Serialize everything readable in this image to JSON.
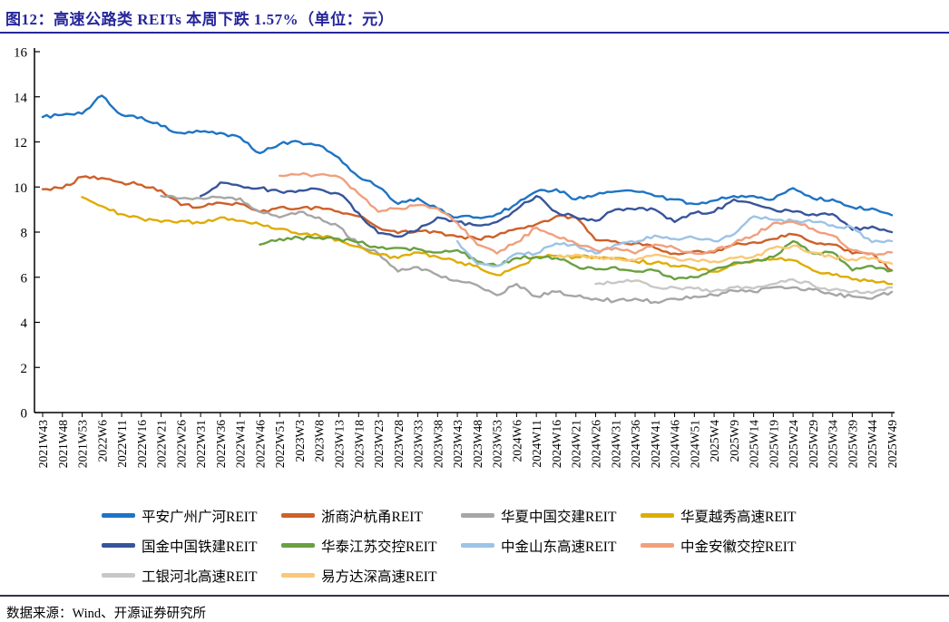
{
  "title": "图12：高速公路类 REITs 本周下跌 1.57%（单位：元）",
  "footer": {
    "source_text": "数据来源：Wind、开源证券研究所"
  },
  "chart_data": {
    "type": "line",
    "title": "高速公路类 REITs 本周下跌 1.57%",
    "unit": "元",
    "ylim": [
      0,
      16
    ],
    "yticks": [
      0,
      2,
      4,
      6,
      8,
      10,
      12,
      14,
      16
    ],
    "grid": false,
    "legend_position": "bottom",
    "x_labels": [
      "2021W43",
      "2021W48",
      "2021W53",
      "2022W6",
      "2022W11",
      "2022W16",
      "2022W21",
      "2022W26",
      "2022W31",
      "2022W36",
      "2022W41",
      "2022W46",
      "2022W51",
      "2023W3",
      "2023W8",
      "2023W13",
      "2023W18",
      "2023W23",
      "2023W28",
      "2023W33",
      "2023W38",
      "2023W43",
      "2023W48",
      "2023W53",
      "2024W6",
      "2024W11",
      "2024W16",
      "2024W21",
      "2024W26",
      "2024W31",
      "2024W36",
      "2024W41",
      "2024W46",
      "2024W51",
      "2025W4",
      "2025W9",
      "2025W14",
      "2025W19",
      "2025W24",
      "2025W29",
      "2025W34",
      "2025W39",
      "2025W44",
      "2025W49"
    ],
    "series": [
      {
        "name": "平安广州广河REIT",
        "color": "#1F74C4",
        "values": [
          13.1,
          13.2,
          13.25,
          14.05,
          13.2,
          13.1,
          12.7,
          12.4,
          12.45,
          12.4,
          12.2,
          11.5,
          11.9,
          12.0,
          11.85,
          11.3,
          10.45,
          10.0,
          9.25,
          9.5,
          9.05,
          8.65,
          8.65,
          8.8,
          9.25,
          9.8,
          9.9,
          9.45,
          9.65,
          9.8,
          9.8,
          9.6,
          9.45,
          9.25,
          9.4,
          9.6,
          9.6,
          9.45,
          9.95,
          9.5,
          9.45,
          9.1,
          9.05,
          8.75
        ]
      },
      {
        "name": "浙商沪杭甬REIT",
        "color": "#CE6029",
        "values": [
          9.9,
          9.95,
          10.45,
          10.4,
          10.2,
          10.1,
          9.85,
          9.2,
          9.1,
          9.3,
          9.25,
          8.9,
          9.1,
          9.05,
          9.1,
          8.9,
          8.7,
          8.2,
          7.95,
          8.05,
          8.0,
          7.8,
          7.7,
          7.85,
          8.15,
          8.35,
          8.7,
          8.65,
          7.65,
          7.6,
          7.5,
          7.3,
          7.05,
          7.15,
          7.1,
          7.45,
          7.55,
          7.7,
          7.9,
          7.55,
          7.45,
          7.05,
          7.05,
          6.3
        ]
      },
      {
        "name": "华夏中国交建REIT",
        "color": "#A6A6A6",
        "values": [
          null,
          null,
          null,
          null,
          null,
          null,
          9.6,
          9.5,
          9.5,
          9.55,
          9.5,
          8.9,
          8.65,
          8.9,
          8.65,
          8.25,
          7.45,
          7.05,
          6.25,
          6.45,
          6.1,
          5.85,
          5.65,
          5.2,
          5.7,
          5.15,
          5.35,
          5.15,
          5.05,
          4.95,
          5.05,
          4.9,
          5.05,
          5.15,
          5.2,
          5.4,
          5.35,
          5.55,
          5.55,
          5.45,
          5.25,
          5.15,
          5.05,
          5.35
        ]
      },
      {
        "name": "华夏越秀高速REIT",
        "color": "#DFAC04",
        "values": [
          null,
          null,
          9.55,
          9.15,
          8.8,
          8.6,
          8.45,
          8.5,
          8.4,
          8.65,
          8.5,
          8.35,
          8.15,
          7.9,
          7.85,
          7.65,
          7.35,
          7.0,
          6.85,
          7.1,
          6.9,
          6.65,
          6.5,
          6.1,
          6.45,
          6.9,
          6.95,
          6.9,
          6.9,
          6.85,
          6.7,
          6.65,
          6.5,
          6.4,
          6.25,
          6.55,
          6.7,
          6.8,
          6.75,
          6.3,
          6.1,
          5.9,
          5.85,
          5.7
        ]
      },
      {
        "name": "国金中国铁建REIT",
        "color": "#37559B",
        "values": [
          null,
          null,
          null,
          null,
          null,
          null,
          null,
          null,
          9.6,
          10.2,
          10.05,
          9.95,
          9.8,
          9.85,
          9.9,
          9.7,
          8.85,
          7.95,
          7.8,
          8.1,
          8.65,
          8.45,
          8.3,
          8.45,
          9.0,
          9.6,
          8.9,
          8.65,
          8.5,
          9.0,
          9.0,
          9.0,
          8.45,
          8.85,
          8.9,
          9.45,
          9.25,
          9.0,
          8.9,
          8.8,
          8.8,
          8.1,
          8.25,
          8.0
        ]
      },
      {
        "name": "华泰江苏交控REIT",
        "color": "#69A041",
        "values": [
          null,
          null,
          null,
          null,
          null,
          null,
          null,
          null,
          null,
          null,
          null,
          7.45,
          7.7,
          7.75,
          7.75,
          7.7,
          7.55,
          7.3,
          7.3,
          7.25,
          7.1,
          7.2,
          6.7,
          6.5,
          6.85,
          6.9,
          6.85,
          6.5,
          6.35,
          6.45,
          6.25,
          6.3,
          5.9,
          6.0,
          6.35,
          6.65,
          6.75,
          6.9,
          7.6,
          7.05,
          7.1,
          6.3,
          6.5,
          6.3
        ]
      },
      {
        "name": "中金山东高速REIT",
        "color": "#9DC3E6",
        "values": [
          null,
          null,
          null,
          null,
          null,
          null,
          null,
          null,
          null,
          null,
          null,
          null,
          null,
          null,
          null,
          null,
          null,
          null,
          null,
          null,
          null,
          7.6,
          6.6,
          6.5,
          7.05,
          7.05,
          7.5,
          7.45,
          7.05,
          7.45,
          7.55,
          7.85,
          7.7,
          7.75,
          7.6,
          7.9,
          8.7,
          8.55,
          8.5,
          8.45,
          8.3,
          8.2,
          7.55,
          7.6
        ]
      },
      {
        "name": "中金安徽交控REIT",
        "color": "#F0A07D",
        "values": [
          null,
          null,
          null,
          null,
          null,
          null,
          null,
          null,
          null,
          null,
          null,
          null,
          10.5,
          10.55,
          10.55,
          10.45,
          9.7,
          8.9,
          9.05,
          9.2,
          9.05,
          8.4,
          7.45,
          7.05,
          7.55,
          8.2,
          7.8,
          7.5,
          7.2,
          7.3,
          7.05,
          7.45,
          7.3,
          7.05,
          7.15,
          7.5,
          7.85,
          8.4,
          8.45,
          8.15,
          7.85,
          7.2,
          7.05,
          7.1
        ]
      },
      {
        "name": "工银河北高速REIT",
        "color": "#C8C8C8",
        "values": [
          null,
          null,
          null,
          null,
          null,
          null,
          null,
          null,
          null,
          null,
          null,
          null,
          null,
          null,
          null,
          null,
          null,
          null,
          null,
          null,
          null,
          null,
          null,
          null,
          null,
          null,
          null,
          null,
          5.7,
          5.75,
          5.85,
          5.55,
          5.55,
          5.5,
          5.4,
          5.55,
          5.5,
          5.7,
          5.9,
          5.65,
          5.45,
          5.35,
          5.3,
          5.55
        ]
      },
      {
        "name": "易方达深高速REIT",
        "color": "#FAC878",
        "values": [
          null,
          null,
          null,
          null,
          null,
          null,
          null,
          null,
          null,
          null,
          null,
          null,
          null,
          null,
          null,
          null,
          null,
          null,
          null,
          null,
          null,
          null,
          null,
          null,
          null,
          null,
          6.9,
          7.0,
          6.85,
          6.8,
          6.75,
          7.0,
          6.85,
          6.75,
          6.7,
          6.85,
          6.9,
          7.3,
          7.4,
          7.1,
          6.9,
          6.8,
          6.85,
          6.6
        ]
      }
    ]
  }
}
